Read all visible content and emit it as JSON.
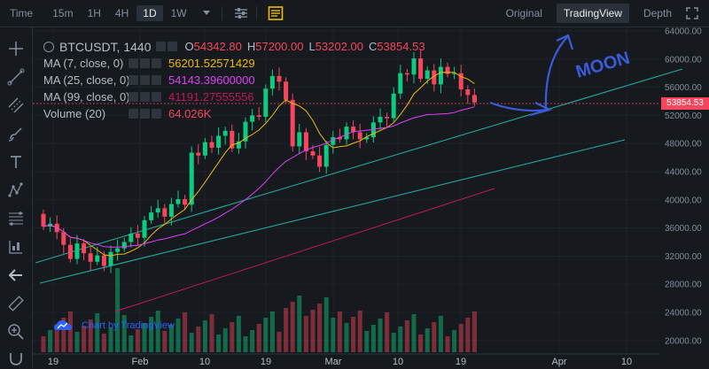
{
  "toolbar": {
    "time_label": "Time",
    "intervals": [
      {
        "label": "15m",
        "active": false
      },
      {
        "label": "1H",
        "active": false
      },
      {
        "label": "4H",
        "active": false
      },
      {
        "label": "1D",
        "active": true
      },
      {
        "label": "1W",
        "active": false
      }
    ],
    "views": [
      {
        "label": "Original",
        "active": false
      },
      {
        "label": "TradingView",
        "active": true
      },
      {
        "label": "Depth",
        "active": false
      }
    ]
  },
  "legend": {
    "symbol": "BTCUSDT, 1440",
    "o_label": "O",
    "o_value": "54342.80",
    "h_label": "H",
    "h_value": "57200.00",
    "l_label": "L",
    "l_value": "53202.00",
    "c_label": "C",
    "c_value": "53854.53",
    "ma7_label": "MA (7, close, 0)",
    "ma7_value": "56201.52571429",
    "ma7_color": "#f0b90b",
    "ma25_label": "MA (25, close, 0)",
    "ma25_value": "54143.39600000",
    "ma25_color": "#e040fb",
    "ma99_label": "MA (99, close, 0)",
    "ma99_value": "41191.27555556",
    "ma99_color": "#c2185b",
    "vol_label": "Volume (20)",
    "vol_value": "64.026K",
    "vol_color": "#f6465d"
  },
  "price_axis": [
    "64000.00",
    "60000.00",
    "56000.00",
    "52000.00",
    "48000.00",
    "44000.00",
    "40000.00",
    "36000.00",
    "32000.00",
    "28000.00",
    "24000.00",
    "20000.00"
  ],
  "time_axis": [
    "19",
    "Feb",
    "10",
    "19",
    "Mar",
    "10",
    "19",
    "Apr",
    "10"
  ],
  "current_price": "53854.53",
  "annotation_text": "MOON",
  "branding": "Chart by TradingView",
  "colors": {
    "up": "#0ecb81",
    "down": "#f6465d",
    "bg": "#161a1e",
    "pen": "#3b5bdb"
  }
}
